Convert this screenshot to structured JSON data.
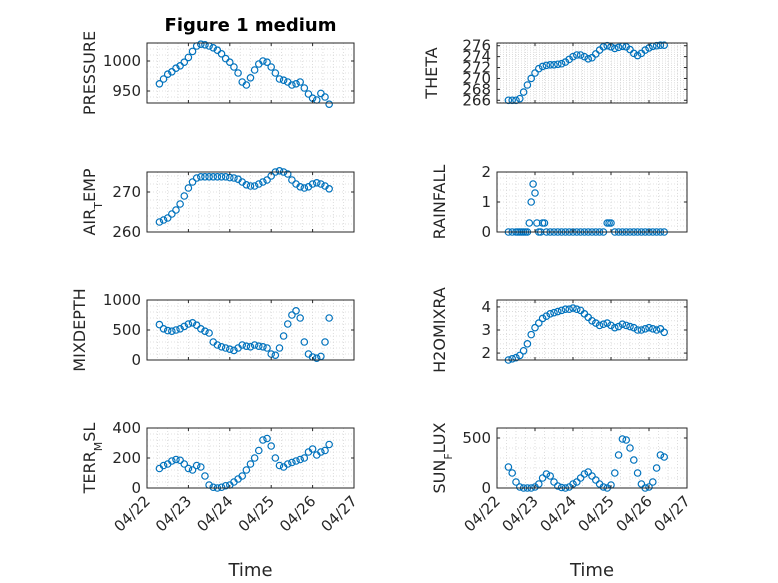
{
  "figure": {
    "title": "Figure 1 medium"
  },
  "x_tick_labels": [
    "04/22",
    "04/23",
    "04/24",
    "04/25",
    "04/26",
    "04/27"
  ],
  "x_label": "Time",
  "chart_data": [
    {
      "id": "pressure",
      "type": "scatter",
      "ylabel_parts": [
        [
          "PRESSURE",
          ""
        ]
      ],
      "yticks": [
        950,
        1000
      ],
      "ylim": [
        930,
        1030
      ],
      "xlim": [
        0,
        5
      ],
      "title": "Figure 1 medium",
      "x": [
        0.3,
        0.4,
        0.5,
        0.6,
        0.7,
        0.8,
        0.9,
        1.0,
        1.1,
        1.2,
        1.3,
        1.4,
        1.5,
        1.6,
        1.7,
        1.8,
        1.9,
        2.0,
        2.1,
        2.2,
        2.3,
        2.4,
        2.5,
        2.6,
        2.7,
        2.8,
        2.9,
        3.0,
        3.1,
        3.2,
        3.3,
        3.4,
        3.5,
        3.6,
        3.7,
        3.8,
        3.9,
        4.0,
        4.1,
        4.2,
        4.3,
        4.4
      ],
      "values": [
        962,
        970,
        978,
        982,
        988,
        992,
        998,
        1006,
        1016,
        1025,
        1028,
        1027,
        1025,
        1022,
        1018,
        1012,
        1004,
        998,
        990,
        980,
        965,
        960,
        972,
        985,
        995,
        1000,
        998,
        990,
        980,
        970,
        968,
        965,
        960,
        962,
        965,
        955,
        945,
        938,
        935,
        946,
        940,
        928
      ]
    },
    {
      "id": "theta",
      "type": "scatter",
      "ylabel_parts": [
        [
          "THETA",
          ""
        ]
      ],
      "yticks": [
        266,
        268,
        270,
        272,
        274,
        276
      ],
      "ylim": [
        265.5,
        276.5
      ],
      "xlim": [
        0,
        5
      ],
      "x": [
        0.3,
        0.4,
        0.5,
        0.6,
        0.7,
        0.8,
        0.9,
        1.0,
        1.1,
        1.2,
        1.3,
        1.4,
        1.5,
        1.6,
        1.7,
        1.8,
        1.9,
        2.0,
        2.1,
        2.2,
        2.3,
        2.4,
        2.5,
        2.6,
        2.7,
        2.8,
        2.9,
        3.0,
        3.1,
        3.2,
        3.3,
        3.4,
        3.5,
        3.6,
        3.7,
        3.8,
        3.9,
        4.0,
        4.1,
        4.2,
        4.3,
        4.4
      ],
      "values": [
        266,
        266,
        266,
        266.3,
        267.5,
        268.8,
        270,
        271,
        271.8,
        272.2,
        272.4,
        272.5,
        272.5,
        272.6,
        272.7,
        273,
        273.5,
        274,
        274.3,
        274.3,
        274,
        273.6,
        273.8,
        274.5,
        275.2,
        275.8,
        276,
        275.8,
        275.5,
        275.7,
        275.9,
        275.8,
        275.3,
        274.6,
        274.2,
        274.6,
        275.2,
        275.6,
        275.9,
        276,
        276.1,
        276.1
      ]
    },
    {
      "id": "air_temp",
      "type": "scatter",
      "ylabel_parts": [
        [
          "AIR",
          ""
        ],
        [
          "T",
          "sub"
        ],
        [
          "EMP",
          ""
        ]
      ],
      "yticks": [
        260,
        270
      ],
      "ylim": [
        260,
        275
      ],
      "xlim": [
        0,
        5
      ],
      "x": [
        0.3,
        0.4,
        0.5,
        0.6,
        0.7,
        0.8,
        0.9,
        1.0,
        1.1,
        1.2,
        1.3,
        1.4,
        1.5,
        1.6,
        1.7,
        1.8,
        1.9,
        2.0,
        2.1,
        2.2,
        2.3,
        2.4,
        2.5,
        2.6,
        2.7,
        2.8,
        2.9,
        3.0,
        3.1,
        3.2,
        3.3,
        3.4,
        3.5,
        3.6,
        3.7,
        3.8,
        3.9,
        4.0,
        4.1,
        4.2,
        4.3,
        4.4
      ],
      "values": [
        262.5,
        263,
        263.5,
        264.5,
        265.5,
        267,
        269,
        271,
        272.5,
        273.5,
        273.8,
        273.8,
        273.8,
        273.8,
        273.8,
        273.8,
        273.8,
        273.6,
        273.5,
        273.2,
        272.5,
        271.8,
        271.5,
        271.5,
        272,
        272.5,
        273,
        274,
        275,
        275.3,
        275,
        274.5,
        273,
        272,
        271.3,
        271,
        271.3,
        272,
        272.3,
        272,
        271.5,
        270.8
      ]
    },
    {
      "id": "rainfall",
      "type": "scatter",
      "ylabel_parts": [
        [
          "RAINFALL",
          ""
        ]
      ],
      "yticks": [
        0,
        1,
        2
      ],
      "ylim": [
        0,
        2
      ],
      "xlim": [
        0,
        5
      ],
      "x": [
        0.3,
        0.4,
        0.5,
        0.55,
        0.6,
        0.65,
        0.7,
        0.75,
        0.8,
        0.85,
        0.9,
        0.95,
        1.0,
        1.05,
        1.1,
        1.15,
        1.2,
        1.25,
        1.3,
        1.4,
        1.5,
        1.6,
        1.7,
        1.8,
        1.9,
        2.0,
        2.1,
        2.2,
        2.3,
        2.4,
        2.5,
        2.6,
        2.7,
        2.8,
        2.9,
        2.95,
        3.0,
        3.1,
        3.2,
        3.3,
        3.4,
        3.5,
        3.6,
        3.7,
        3.8,
        3.9,
        4.0,
        4.1,
        4.2,
        4.3,
        4.4
      ],
      "values": [
        0,
        0,
        0,
        0,
        0,
        0,
        0,
        0,
        0,
        0.3,
        1.0,
        1.6,
        1.3,
        0.3,
        0,
        0,
        0.3,
        0.3,
        0,
        0,
        0,
        0,
        0,
        0,
        0,
        0,
        0,
        0,
        0,
        0,
        0,
        0,
        0,
        0,
        0.3,
        0.3,
        0.3,
        0,
        0,
        0,
        0,
        0,
        0,
        0,
        0,
        0,
        0,
        0,
        0,
        0,
        0
      ]
    },
    {
      "id": "mixdepth",
      "type": "scatter",
      "ylabel_parts": [
        [
          "MIXDEPTH",
          ""
        ]
      ],
      "yticks": [
        0,
        500,
        1000
      ],
      "ylim": [
        0,
        1000
      ],
      "xlim": [
        0,
        5
      ],
      "x": [
        0.3,
        0.4,
        0.5,
        0.6,
        0.7,
        0.8,
        0.9,
        1.0,
        1.1,
        1.2,
        1.3,
        1.4,
        1.5,
        1.6,
        1.7,
        1.8,
        1.9,
        2.0,
        2.1,
        2.2,
        2.3,
        2.4,
        2.5,
        2.6,
        2.7,
        2.8,
        2.9,
        3.0,
        3.1,
        3.2,
        3.3,
        3.4,
        3.5,
        3.6,
        3.7,
        3.8,
        3.9,
        4.0,
        4.1,
        4.2,
        4.3,
        4.4
      ],
      "values": [
        590,
        520,
        490,
        480,
        500,
        520,
        560,
        600,
        620,
        580,
        520,
        480,
        450,
        300,
        250,
        220,
        200,
        180,
        160,
        200,
        250,
        230,
        220,
        250,
        230,
        220,
        200,
        100,
        80,
        200,
        400,
        600,
        750,
        820,
        700,
        300,
        100,
        50,
        30,
        60,
        300,
        700
      ]
    },
    {
      "id": "h2omixra",
      "type": "scatter",
      "ylabel_parts": [
        [
          "H2OMIXRA",
          ""
        ]
      ],
      "yticks": [
        2,
        3,
        4
      ],
      "ylim": [
        1.7,
        4.3
      ],
      "xlim": [
        0,
        5
      ],
      "x": [
        0.3,
        0.4,
        0.5,
        0.6,
        0.7,
        0.8,
        0.9,
        1.0,
        1.1,
        1.2,
        1.3,
        1.4,
        1.5,
        1.6,
        1.7,
        1.8,
        1.9,
        2.0,
        2.1,
        2.2,
        2.3,
        2.4,
        2.5,
        2.6,
        2.7,
        2.8,
        2.9,
        3.0,
        3.1,
        3.2,
        3.3,
        3.4,
        3.5,
        3.6,
        3.7,
        3.8,
        3.9,
        4.0,
        4.1,
        4.2,
        4.3,
        4.4
      ],
      "values": [
        1.7,
        1.75,
        1.8,
        1.9,
        2.1,
        2.4,
        2.8,
        3.1,
        3.3,
        3.5,
        3.6,
        3.7,
        3.75,
        3.8,
        3.85,
        3.9,
        3.9,
        3.95,
        3.9,
        3.85,
        3.7,
        3.55,
        3.4,
        3.3,
        3.2,
        3.25,
        3.3,
        3.2,
        3.1,
        3.15,
        3.25,
        3.2,
        3.15,
        3.1,
        3.0,
        3.0,
        3.05,
        3.1,
        3.05,
        3.0,
        3.05,
        2.9
      ]
    },
    {
      "id": "terr_msl",
      "type": "scatter",
      "ylabel_parts": [
        [
          "TERR",
          ""
        ],
        [
          "M",
          "sub"
        ],
        [
          "SL",
          ""
        ]
      ],
      "yticks": [
        0,
        200,
        400
      ],
      "ylim": [
        0,
        400
      ],
      "xlim": [
        0,
        5
      ],
      "x": [
        0.3,
        0.4,
        0.5,
        0.6,
        0.7,
        0.8,
        0.9,
        1.0,
        1.1,
        1.2,
        1.3,
        1.4,
        1.5,
        1.6,
        1.7,
        1.8,
        1.9,
        2.0,
        2.1,
        2.2,
        2.3,
        2.4,
        2.5,
        2.6,
        2.7,
        2.8,
        2.9,
        3.0,
        3.1,
        3.2,
        3.3,
        3.4,
        3.5,
        3.6,
        3.7,
        3.8,
        3.9,
        4.0,
        4.1,
        4.2,
        4.3,
        4.4
      ],
      "values": [
        130,
        150,
        160,
        180,
        190,
        185,
        160,
        130,
        120,
        150,
        140,
        80,
        20,
        5,
        0,
        5,
        15,
        20,
        40,
        60,
        80,
        120,
        160,
        200,
        250,
        320,
        330,
        280,
        200,
        150,
        140,
        160,
        170,
        180,
        190,
        200,
        240,
        260,
        220,
        240,
        250,
        290
      ]
    },
    {
      "id": "sun_flux",
      "type": "scatter",
      "ylabel_parts": [
        [
          "SUN",
          ""
        ],
        [
          "F",
          "sub"
        ],
        [
          "LUX",
          ""
        ]
      ],
      "yticks": [
        0,
        500
      ],
      "ylim": [
        0,
        600
      ],
      "xlim": [
        0,
        5
      ],
      "x": [
        0.3,
        0.4,
        0.5,
        0.6,
        0.7,
        0.8,
        0.9,
        1.0,
        1.1,
        1.2,
        1.3,
        1.4,
        1.5,
        1.6,
        1.7,
        1.8,
        1.9,
        2.0,
        2.1,
        2.2,
        2.3,
        2.4,
        2.5,
        2.6,
        2.7,
        2.8,
        2.9,
        3.0,
        3.1,
        3.2,
        3.3,
        3.4,
        3.5,
        3.6,
        3.7,
        3.8,
        3.9,
        4.0,
        4.1,
        4.2,
        4.3,
        4.4
      ],
      "values": [
        210,
        150,
        60,
        10,
        0,
        0,
        0,
        10,
        40,
        100,
        140,
        120,
        60,
        20,
        5,
        0,
        10,
        40,
        60,
        100,
        140,
        160,
        120,
        80,
        40,
        10,
        0,
        30,
        150,
        330,
        490,
        480,
        400,
        280,
        150,
        40,
        0,
        10,
        60,
        200,
        330,
        310
      ]
    }
  ]
}
